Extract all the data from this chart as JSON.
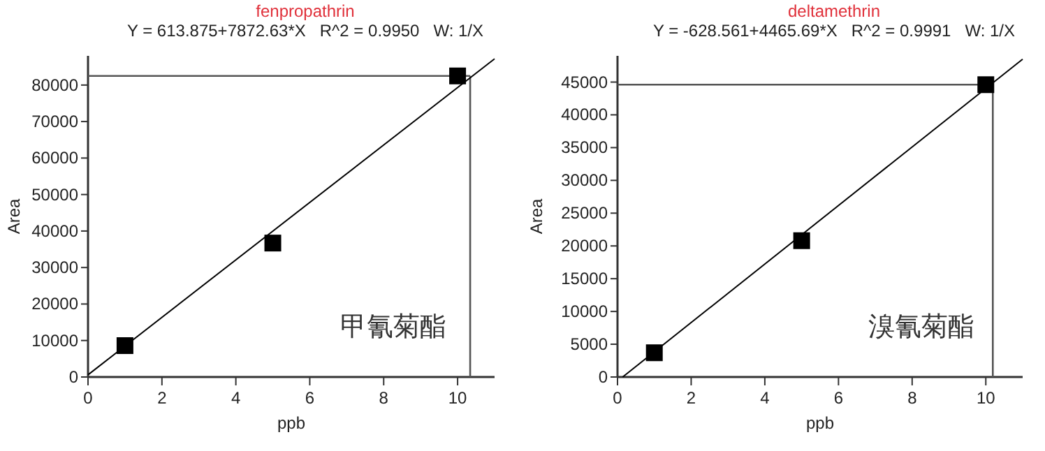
{
  "chart_data": [
    {
      "type": "scatter",
      "title": "fenpropathrin",
      "subtitle": "Y = 613.875+7872.63*X   R^2 = 0.9950   W: 1/X",
      "xlabel": "ppb",
      "ylabel": "Area",
      "annotations": [
        "甲氰菊酯"
      ],
      "xlim": [
        0,
        11
      ],
      "ylim": [
        0,
        88000
      ],
      "xticks": [
        0,
        2,
        4,
        6,
        8,
        10
      ],
      "yticks": [
        0,
        10000,
        20000,
        30000,
        40000,
        50000,
        60000,
        70000,
        80000
      ],
      "grid": false,
      "series": [
        {
          "color": "#000000",
          "marker": "square",
          "x": [
            1,
            5,
            10
          ],
          "values": [
            8600,
            36700,
            82500
          ]
        },
        {
          "type": "line",
          "marker": "none",
          "color": "#000000",
          "x": [
            0,
            11
          ],
          "values": [
            600,
            87200
          ]
        }
      ],
      "ref_lines": [
        {
          "axis": "y",
          "value": 82500,
          "color": "#555555"
        },
        {
          "axis": "x",
          "value": 10.34,
          "color": "#555555"
        }
      ]
    },
    {
      "type": "scatter",
      "title": "deltamethrin",
      "subtitle": "Y = -628.561+4465.69*X   R^2 = 0.9991   W: 1/X",
      "xlabel": "ppb",
      "ylabel": "Area",
      "annotations": [
        "溴氰菊酯"
      ],
      "xlim": [
        0,
        11
      ],
      "ylim": [
        0,
        49000
      ],
      "xticks": [
        0,
        2,
        4,
        6,
        8,
        10
      ],
      "yticks": [
        0,
        5000,
        10000,
        15000,
        20000,
        25000,
        30000,
        35000,
        40000,
        45000
      ],
      "grid": false,
      "series": [
        {
          "color": "#000000",
          "marker": "square",
          "x": [
            1,
            5,
            10
          ],
          "values": [
            3700,
            20800,
            44600
          ]
        },
        {
          "type": "line",
          "marker": "none",
          "color": "#000000",
          "x": [
            0.14,
            11
          ],
          "values": [
            0,
            48500
          ]
        }
      ],
      "ref_lines": [
        {
          "axis": "y",
          "value": 44600,
          "color": "#555555"
        },
        {
          "axis": "x",
          "value": 10.19,
          "color": "#555555"
        }
      ]
    }
  ]
}
